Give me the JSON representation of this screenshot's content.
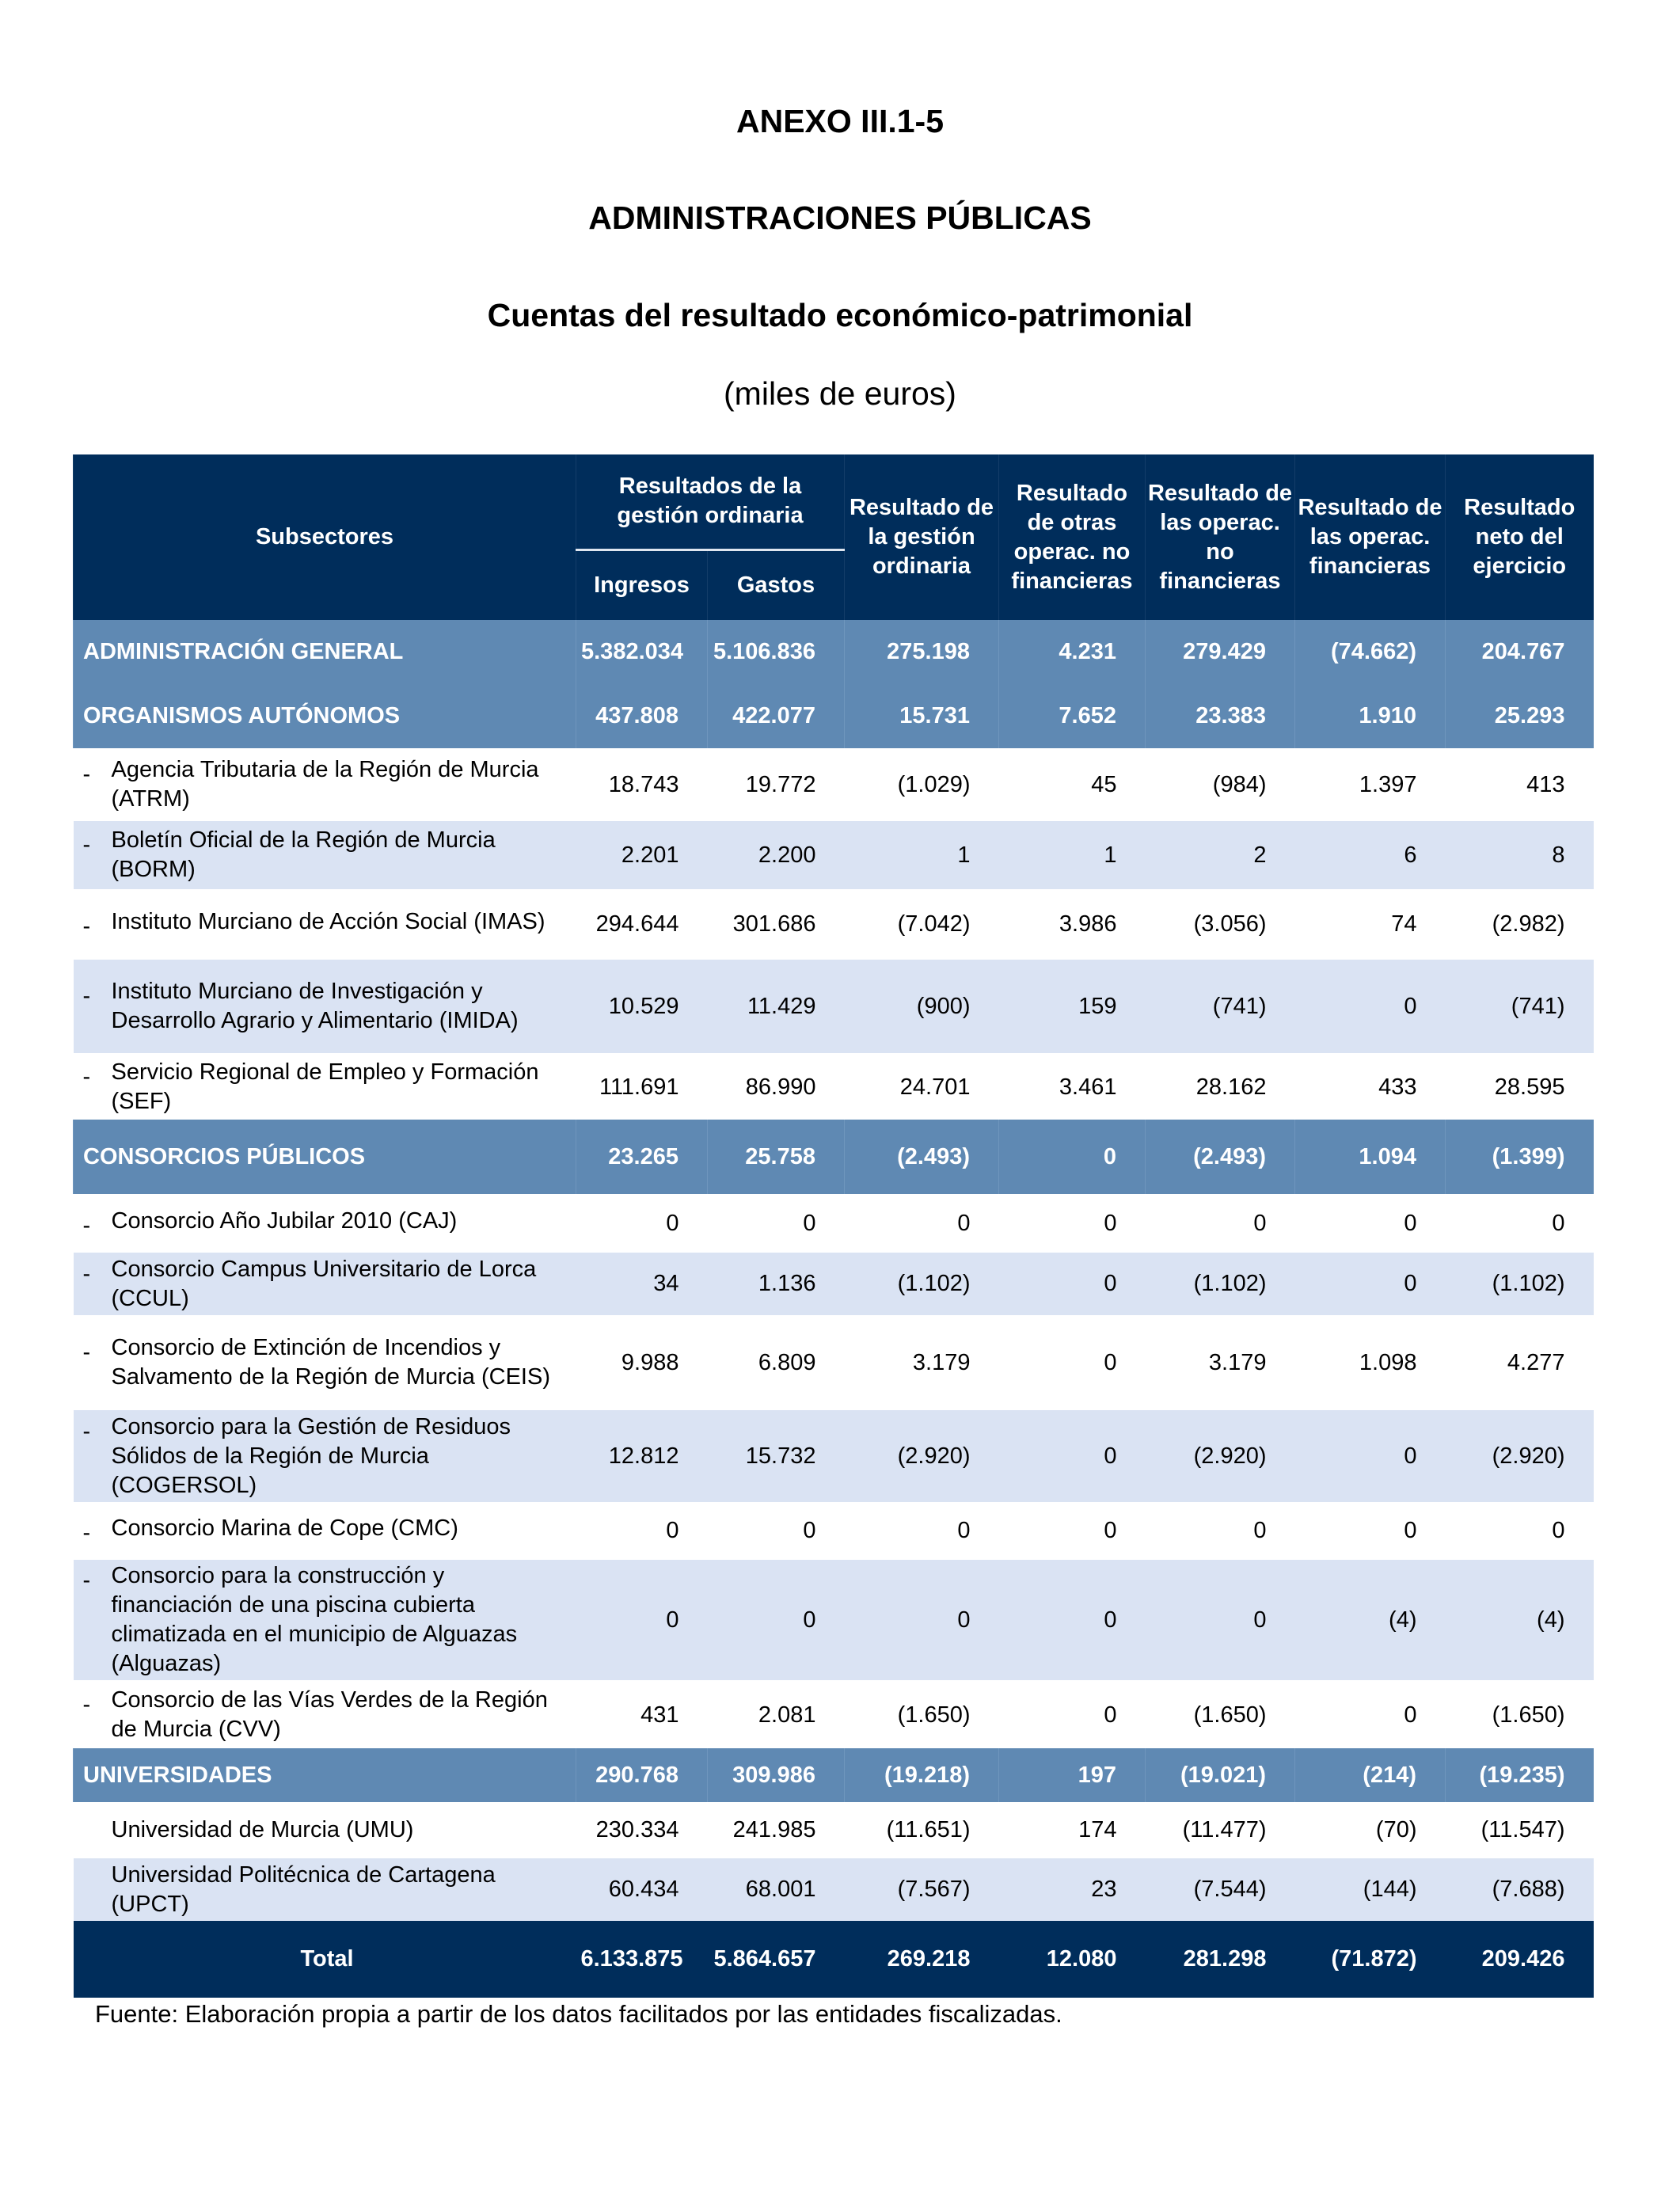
{
  "titles": {
    "annex": "ANEXO III.1-5",
    "sector": "ADMINISTRACIONES PÚBLICAS",
    "statement": "Cuentas del resultado económico-patrimonial",
    "units": "(miles de euros)"
  },
  "colors": {
    "header": "#002D5B",
    "group_row": "#5F89B3",
    "shaded_row": "#DAE3F3"
  },
  "table": {
    "headers": {
      "subsectores": "Subsectores",
      "group_gestion": "Resultados de la gestión ordinaria",
      "ingresos": "Ingresos",
      "gastos": "Gastos",
      "res_gestion": "Resultado de la gestión ordinaria",
      "res_otras": "Resultado de otras operac. no financieras",
      "res_no_fin": "Resultado de las operac. no financieras",
      "res_fin": "Resultado de las operac. financieras",
      "res_neto": "Resultado neto del ejercicio"
    },
    "rows": [
      {
        "type": "group",
        "label": "ADMINISTRACIÓN GENERAL",
        "values": [
          "5.382.034",
          "5.106.836",
          "275.198",
          "4.231",
          "279.429",
          "(74.662)",
          "204.767"
        ]
      },
      {
        "type": "group",
        "label": "ORGANISMOS AUTÓNOMOS",
        "values": [
          "437.808",
          "422.077",
          "15.731",
          "7.652",
          "23.383",
          "1.910",
          "25.293"
        ]
      },
      {
        "type": "item",
        "bullet": "-",
        "label": "Agencia Tributaria de la Región de Murcia (ATRM)",
        "values": [
          "18.743",
          "19.772",
          "(1.029)",
          "45",
          "(984)",
          "1.397",
          "413"
        ]
      },
      {
        "type": "item",
        "bullet": "-",
        "label": "Boletín Oficial de la Región de Murcia (BORM)",
        "values": [
          "2.201",
          "2.200",
          "1",
          "1",
          "2",
          "6",
          "8"
        ]
      },
      {
        "type": "item",
        "bullet": "-",
        "label": "Instituto Murciano de Acción Social (IMAS)",
        "values": [
          "294.644",
          "301.686",
          "(7.042)",
          "3.986",
          "(3.056)",
          "74",
          "(2.982)"
        ]
      },
      {
        "type": "item",
        "bullet": "-",
        "label": "Instituto Murciano de Investigación y Desarrollo Agrario y Alimentario (IMIDA)",
        "values": [
          "10.529",
          "11.429",
          "(900)",
          "159",
          "(741)",
          "0",
          "(741)"
        ]
      },
      {
        "type": "item",
        "bullet": "-",
        "label": "Servicio Regional de Empleo y Formación (SEF)",
        "values": [
          "111.691",
          "86.990",
          "24.701",
          "3.461",
          "28.162",
          "433",
          "28.595"
        ]
      },
      {
        "type": "group",
        "label": "CONSORCIOS PÚBLICOS",
        "values": [
          "23.265",
          "25.758",
          "(2.493)",
          "0",
          "(2.493)",
          "1.094",
          "(1.399)"
        ]
      },
      {
        "type": "item",
        "bullet": "-",
        "label": "Consorcio Año Jubilar 2010 (CAJ)",
        "values": [
          "0",
          "0",
          "0",
          "0",
          "0",
          "0",
          "0"
        ]
      },
      {
        "type": "item",
        "bullet": "-",
        "label": "Consorcio Campus Universitario de Lorca (CCUL)",
        "values": [
          "34",
          "1.136",
          "(1.102)",
          "0",
          "(1.102)",
          "0",
          "(1.102)"
        ]
      },
      {
        "type": "item",
        "bullet": "-",
        "label": "Consorcio de Extinción de Incendios y Salvamento de la Región de Murcia (CEIS)",
        "values": [
          "9.988",
          "6.809",
          "3.179",
          "0",
          "3.179",
          "1.098",
          "4.277"
        ]
      },
      {
        "type": "item",
        "bullet": "-",
        "label": "Consorcio para la Gestión de Residuos Sólidos de la Región de Murcia (COGERSOL)",
        "values": [
          "12.812",
          "15.732",
          "(2.920)",
          "0",
          "(2.920)",
          "0",
          "(2.920)"
        ]
      },
      {
        "type": "item",
        "bullet": "-",
        "label": "Consorcio Marina de Cope (CMC)",
        "values": [
          "0",
          "0",
          "0",
          "0",
          "0",
          "0",
          "0"
        ]
      },
      {
        "type": "item",
        "bullet": "-",
        "label": "Consorcio para la construcción y financiación de una piscina cubierta climatizada en el municipio de Alguazas (Alguazas)",
        "values": [
          "0",
          "0",
          "0",
          "0",
          "0",
          "(4)",
          "(4)"
        ]
      },
      {
        "type": "item",
        "bullet": "-",
        "label": "Consorcio de las Vías Verdes de la Región de Murcia (CVV)",
        "values": [
          "431",
          "2.081",
          "(1.650)",
          "0",
          "(1.650)",
          "0",
          "(1.650)"
        ]
      },
      {
        "type": "group",
        "label": "UNIVERSIDADES",
        "values": [
          "290.768",
          "309.986",
          "(19.218)",
          "197",
          "(19.021)",
          "(214)",
          "(19.235)"
        ]
      },
      {
        "type": "item",
        "label": "Universidad de Murcia (UMU)",
        "values": [
          "230.334",
          "241.985",
          "(11.651)",
          "174",
          "(11.477)",
          "(70)",
          "(11.547)"
        ]
      },
      {
        "type": "item",
        "label": "Universidad Politécnica de Cartagena (UPCT)",
        "values": [
          "60.434",
          "68.001",
          "(7.567)",
          "23",
          "(7.544)",
          "(144)",
          "(7.688)"
        ]
      },
      {
        "type": "total",
        "label": "Total",
        "values": [
          "6.133.875",
          "5.864.657",
          "269.218",
          "12.080",
          "281.298",
          "(71.872)",
          "209.426"
        ]
      }
    ]
  },
  "source": "Fuente: Elaboración propia a partir de los datos facilitados por las entidades fiscalizadas."
}
